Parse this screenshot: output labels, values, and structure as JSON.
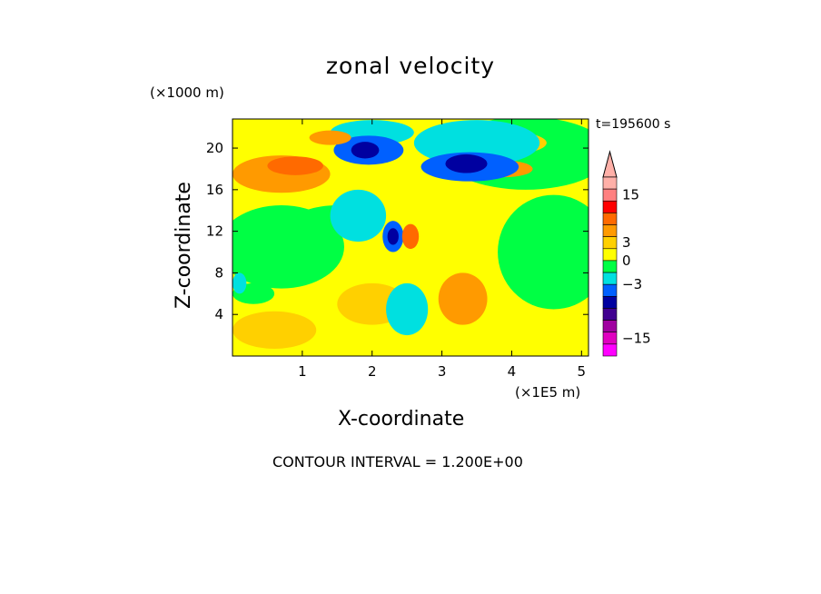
{
  "chart_data": {
    "type": "heatmap",
    "title": "zonal velocity",
    "xlabel": "X-coordinate",
    "ylabel": "Z-coordinate",
    "x_unit": "(×1E5 m)",
    "y_unit": "(×1000 m)",
    "time_label": "t=195600 s",
    "footer": "CONTOUR INTERVAL = 1.200E+00",
    "xlim": [
      0,
      5.1
    ],
    "ylim": [
      0,
      22.8
    ],
    "x_ticks": [
      "1",
      "2",
      "3",
      "4",
      "5"
    ],
    "y_ticks": [
      "4",
      "8",
      "12",
      "16",
      "20"
    ],
    "colorbar": {
      "tick_labels": [
        "15",
        "3",
        "0",
        "−3",
        "−15"
      ],
      "colors_top_to_bottom": [
        "#ffb0a8",
        "#ff8080",
        "#ff0000",
        "#ff6a00",
        "#ff9a00",
        "#ffd000",
        "#ffff00",
        "#00ff44",
        "#00e0e0",
        "#0060ff",
        "#0000a0",
        "#400090",
        "#a000a0",
        "#e000c0",
        "#ff00ff"
      ]
    },
    "regions": [
      {
        "color": "#ffff00",
        "x": 2.0,
        "y": 6.0,
        "rx": 4.0,
        "ry": 6.5
      },
      {
        "color": "#00ff44",
        "x": 0.7,
        "y": 10.5,
        "rx": 0.9,
        "ry": 4.0
      },
      {
        "color": "#00ff44",
        "x": 4.6,
        "y": 10.0,
        "rx": 0.8,
        "ry": 5.5
      },
      {
        "color": "#00ff44",
        "x": 4.2,
        "y": 19.5,
        "rx": 1.2,
        "ry": 3.5
      },
      {
        "color": "#00ff44",
        "x": 1.5,
        "y": 13.0,
        "rx": 0.6,
        "ry": 1.5
      },
      {
        "color": "#ffd000",
        "x": 0.6,
        "y": 2.5,
        "rx": 0.6,
        "ry": 1.8
      },
      {
        "color": "#ffd000",
        "x": 2.0,
        "y": 5.0,
        "rx": 0.5,
        "ry": 2.0
      },
      {
        "color": "#ff9a00",
        "x": 3.3,
        "y": 5.5,
        "rx": 0.35,
        "ry": 2.5
      },
      {
        "color": "#ff9a00",
        "x": 0.7,
        "y": 17.5,
        "rx": 0.7,
        "ry": 1.8
      },
      {
        "color": "#ff6a00",
        "x": 0.9,
        "y": 18.3,
        "rx": 0.4,
        "ry": 0.9
      },
      {
        "color": "#ffd000",
        "x": 3.8,
        "y": 20.5,
        "rx": 0.7,
        "ry": 1.2
      },
      {
        "color": "#ff9a00",
        "x": 3.9,
        "y": 18.0,
        "rx": 0.4,
        "ry": 0.8
      },
      {
        "color": "#00e0e0",
        "x": 1.8,
        "y": 13.5,
        "rx": 0.4,
        "ry": 2.5
      },
      {
        "color": "#00e0e0",
        "x": 2.5,
        "y": 4.5,
        "rx": 0.3,
        "ry": 2.5
      },
      {
        "color": "#00e0e0",
        "x": 3.5,
        "y": 20.5,
        "rx": 0.9,
        "ry": 2.2
      },
      {
        "color": "#00e0e0",
        "x": 2.0,
        "y": 21.5,
        "rx": 0.6,
        "ry": 1.2
      },
      {
        "color": "#0060ff",
        "x": 1.95,
        "y": 19.8,
        "rx": 0.5,
        "ry": 1.4
      },
      {
        "color": "#0060ff",
        "x": 3.4,
        "y": 18.2,
        "rx": 0.7,
        "ry": 1.4
      },
      {
        "color": "#0000a0",
        "x": 3.35,
        "y": 18.5,
        "rx": 0.3,
        "ry": 0.9
      },
      {
        "color": "#0000a0",
        "x": 1.9,
        "y": 19.8,
        "rx": 0.2,
        "ry": 0.8
      },
      {
        "color": "#0060ff",
        "x": 2.3,
        "y": 11.5,
        "rx": 0.15,
        "ry": 1.5
      },
      {
        "color": "#0000a0",
        "x": 2.3,
        "y": 11.5,
        "rx": 0.08,
        "ry": 0.8
      },
      {
        "color": "#ff6a00",
        "x": 2.55,
        "y": 11.5,
        "rx": 0.12,
        "ry": 1.2
      },
      {
        "color": "#ff9a00",
        "x": 1.4,
        "y": 21.0,
        "rx": 0.3,
        "ry": 0.7
      },
      {
        "color": "#00ff44",
        "x": 0.3,
        "y": 6.0,
        "rx": 0.3,
        "ry": 1.0
      },
      {
        "color": "#00e0e0",
        "x": 0.1,
        "y": 7.0,
        "rx": 0.1,
        "ry": 1.0
      }
    ]
  }
}
